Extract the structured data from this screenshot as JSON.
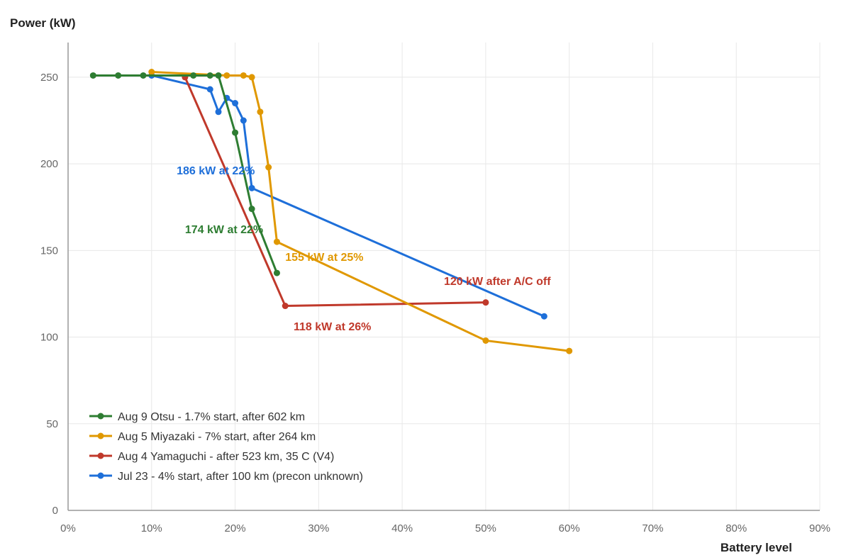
{
  "chart_data": {
    "type": "line",
    "ylabel": "Power (kW)",
    "xlabel": "Battery level",
    "xlim": [
      0,
      90
    ],
    "ylim": [
      0,
      270
    ],
    "x_ticks": [
      0,
      10,
      20,
      30,
      40,
      50,
      60,
      70,
      80,
      90
    ],
    "x_tick_labels": [
      "0%",
      "10%",
      "20%",
      "30%",
      "40%",
      "50%",
      "60%",
      "70%",
      "80%",
      "90%"
    ],
    "y_ticks": [
      0,
      50,
      100,
      150,
      200,
      250
    ],
    "y_tick_labels": [
      "0",
      "50",
      "100",
      "150",
      "200",
      "250"
    ],
    "grid": true,
    "legend_position": "bottom-left",
    "series": [
      {
        "name": "Aug 9 Otsu - 1.7% start, after 602 km",
        "color": "#2e7d32",
        "points": [
          [
            3,
            251
          ],
          [
            6,
            251
          ],
          [
            9,
            251
          ],
          [
            15,
            251
          ],
          [
            17,
            251
          ],
          [
            18,
            251
          ],
          [
            20,
            218
          ],
          [
            22,
            174
          ],
          [
            25,
            137
          ]
        ]
      },
      {
        "name": "Aug 5 Miyazaki - 7% start, after 264 km",
        "color": "#e09800",
        "points": [
          [
            10,
            253
          ],
          [
            19,
            251
          ],
          [
            21,
            251
          ],
          [
            22,
            250
          ],
          [
            23,
            230
          ],
          [
            24,
            198
          ],
          [
            25,
            155
          ],
          [
            50,
            98
          ],
          [
            60,
            92
          ]
        ]
      },
      {
        "name": "Aug 4 Yamaguchi - after 523 km, 35 C (V4)",
        "color": "#c0392b",
        "points": [
          [
            14,
            250
          ],
          [
            26,
            118
          ],
          [
            50,
            120
          ]
        ]
      },
      {
        "name": "Jul 23 - 4% start, after 100 km (precon unknown)",
        "color": "#1e6fd9",
        "points": [
          [
            10,
            251
          ],
          [
            17,
            243
          ],
          [
            18,
            230
          ],
          [
            19,
            238
          ],
          [
            20,
            235
          ],
          [
            21,
            225
          ],
          [
            22,
            186
          ],
          [
            57,
            112
          ]
        ]
      }
    ],
    "annotations": [
      {
        "text": "186 kW at 22%",
        "color": "#1e6fd9",
        "x": 13,
        "y": 194
      },
      {
        "text": "174 kW at 22%",
        "color": "#2e7d32",
        "x": 14,
        "y": 160
      },
      {
        "text": "155 kW at 25%",
        "color": "#e09800",
        "x": 26,
        "y": 144
      },
      {
        "text": "120 kW after A/C off",
        "color": "#c0392b",
        "x": 45,
        "y": 130
      },
      {
        "text": "118 kW at 26%",
        "color": "#c0392b",
        "x": 27,
        "y": 104
      }
    ]
  }
}
